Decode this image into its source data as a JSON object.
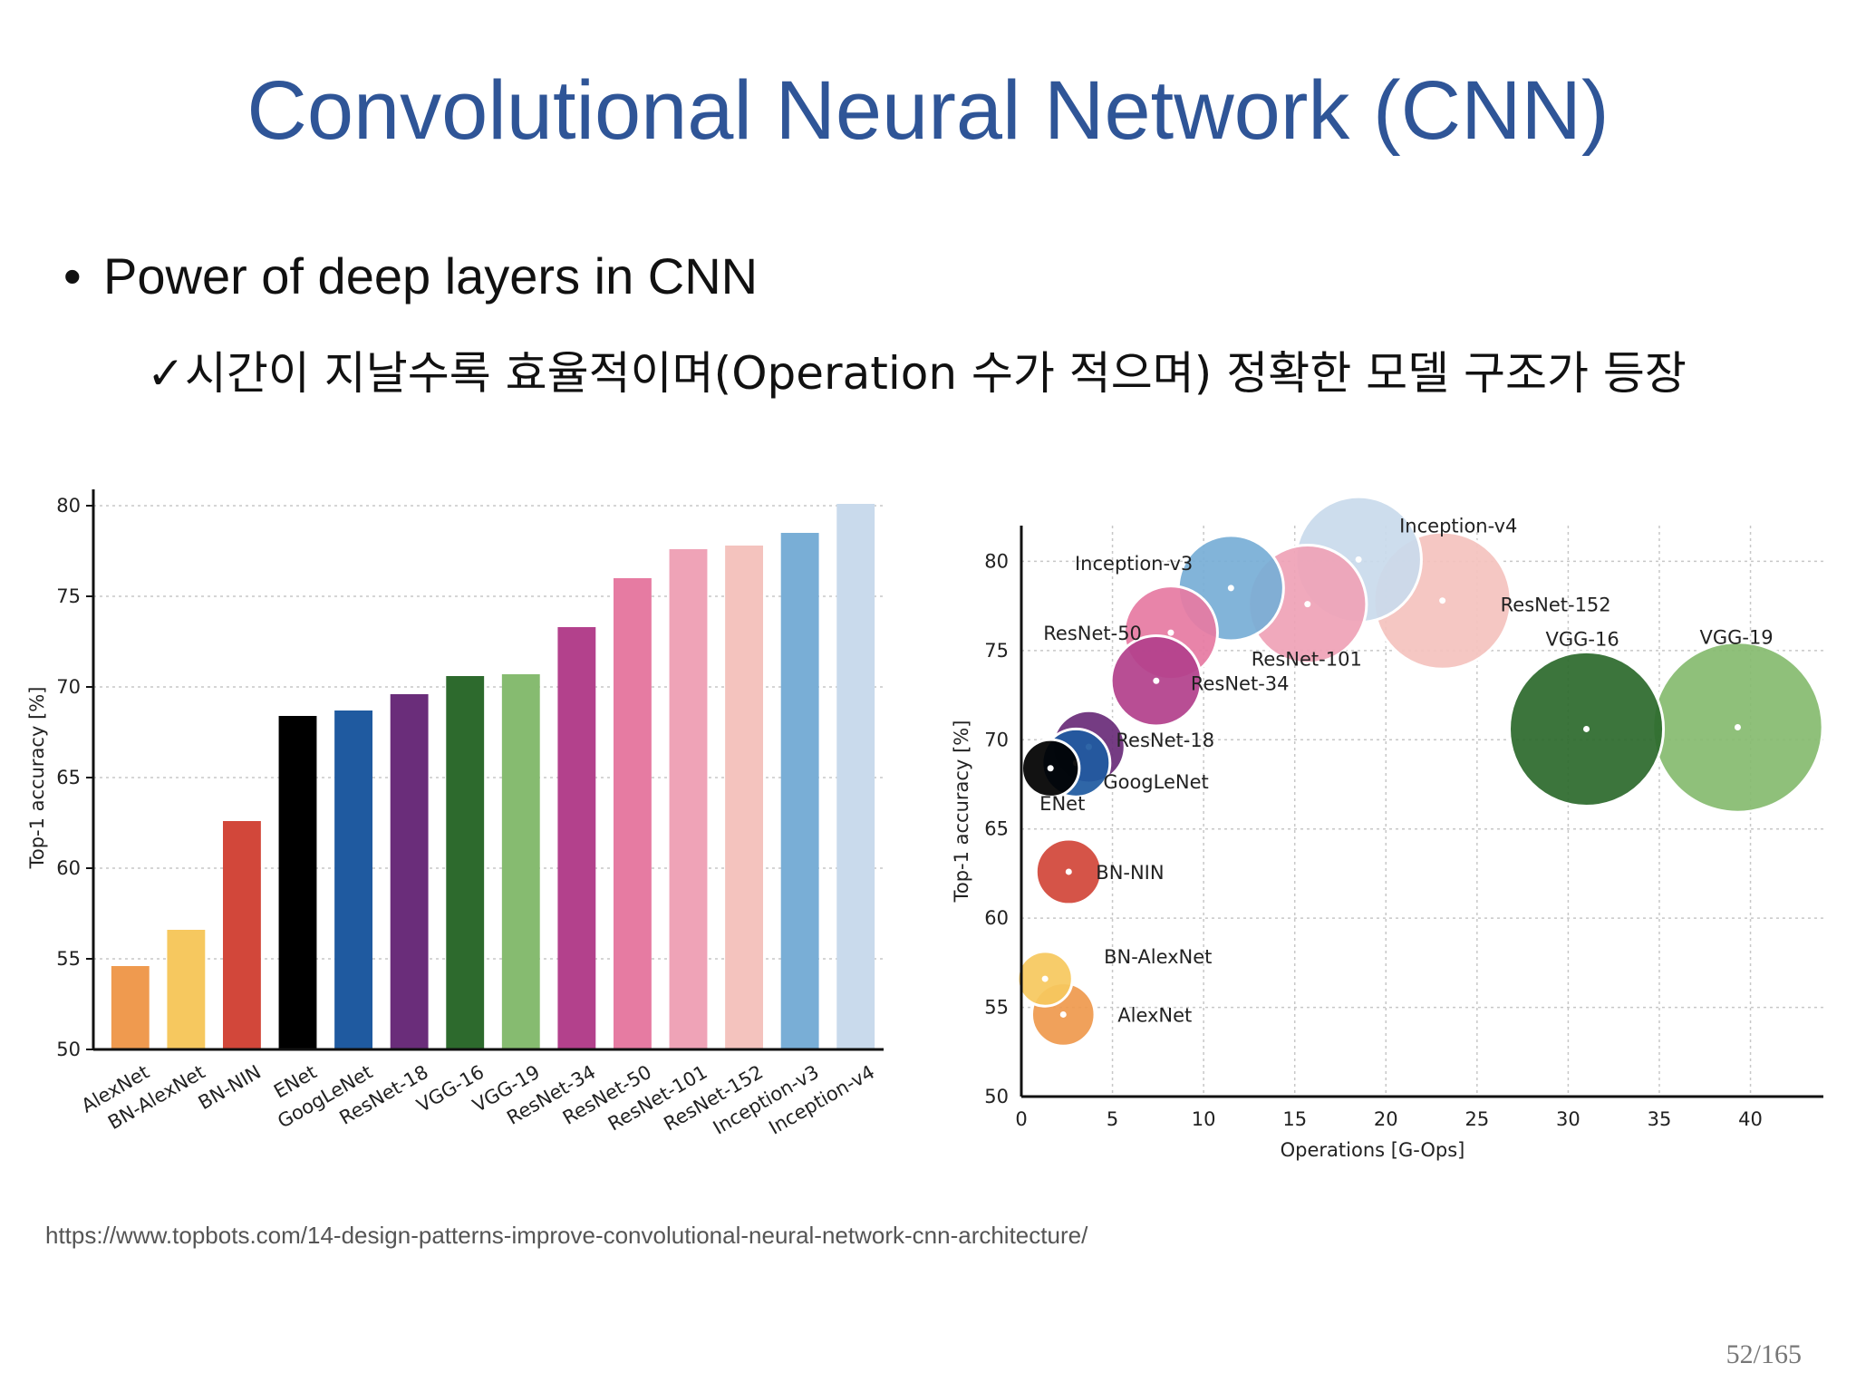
{
  "slide": {
    "title": "Convolutional Neural Network (CNN)",
    "bullet": "Power of deep layers in CNN",
    "sub_bullet": "✓시간이 지날수록 효율적이며(Operation 수가 적으며) 정확한 모델 구조가 등장",
    "source": "https://www.topbots.com/14-design-patterns-improve-convolutional-neural-network-cnn-architecture/",
    "page": "52/165"
  },
  "chart_data": [
    {
      "type": "bar",
      "ylabel": "Top-1 accuracy [%]",
      "xlabel": "",
      "ylim": [
        50,
        80
      ],
      "yticks": [
        50,
        55,
        60,
        65,
        70,
        75,
        80
      ],
      "grid": true,
      "categories": [
        "AlexNet",
        "BN-AlexNet",
        "BN-NIN",
        "ENet",
        "GoogLeNet",
        "ResNet-18",
        "VGG-16",
        "VGG-19",
        "ResNet-34",
        "ResNet-50",
        "ResNet-101",
        "ResNet-152",
        "Inception-v3",
        "Inception-v4"
      ],
      "values": [
        54.6,
        56.6,
        62.6,
        68.4,
        68.7,
        69.6,
        70.6,
        70.7,
        73.3,
        76.0,
        77.6,
        77.8,
        78.5,
        80.1
      ],
      "colors": [
        "#ef9a4f",
        "#f6c85f",
        "#d2473a",
        "#000000",
        "#1f5aa0",
        "#6a2d7a",
        "#2d6a2d",
        "#86bb70",
        "#b3418c",
        "#e67ba2",
        "#efa3b7",
        "#f4c3be",
        "#79aed6",
        "#c9daec"
      ]
    },
    {
      "type": "scatter",
      "xlabel": "Operations [G-Ops]",
      "ylabel": "Top-1 accuracy [%]",
      "xlim": [
        0,
        44
      ],
      "ylim": [
        50,
        82
      ],
      "xticks": [
        0,
        5,
        10,
        15,
        20,
        25,
        30,
        35,
        40
      ],
      "yticks": [
        50,
        55,
        60,
        65,
        70,
        75,
        80
      ],
      "grid": true,
      "points": [
        {
          "label": "AlexNet",
          "x": 2.3,
          "y": 54.6,
          "color": "#ef9a4f"
        },
        {
          "label": "BN-AlexNet",
          "x": 1.3,
          "y": 56.6,
          "color": "#f6c85f"
        },
        {
          "label": "BN-NIN",
          "x": 2.6,
          "y": 62.6,
          "color": "#d2473a"
        },
        {
          "label": "ENet",
          "x": 1.6,
          "y": 68.4,
          "color": "#000000"
        },
        {
          "label": "GoogLeNet",
          "x": 3.0,
          "y": 68.7,
          "color": "#1f5aa0"
        },
        {
          "label": "ResNet-18",
          "x": 3.7,
          "y": 69.6,
          "color": "#6a2d7a"
        },
        {
          "label": "ResNet-34",
          "x": 7.4,
          "y": 73.3,
          "color": "#b3418c"
        },
        {
          "label": "ResNet-50",
          "x": 8.2,
          "y": 76.0,
          "color": "#e67ba2"
        },
        {
          "label": "Inception-v3",
          "x": 11.5,
          "y": 78.5,
          "color": "#79aed6"
        },
        {
          "label": "ResNet-101",
          "x": 15.7,
          "y": 77.6,
          "color": "#efa3b7"
        },
        {
          "label": "Inception-v4",
          "x": 18.5,
          "y": 80.1,
          "color": "#c9daec"
        },
        {
          "label": "ResNet-152",
          "x": 23.1,
          "y": 77.8,
          "color": "#f4c3be"
        },
        {
          "label": "VGG-16",
          "x": 31.0,
          "y": 70.6,
          "color": "#2d6a2d"
        },
        {
          "label": "VGG-19",
          "x": 39.3,
          "y": 70.7,
          "color": "#86bb70"
        }
      ]
    }
  ]
}
